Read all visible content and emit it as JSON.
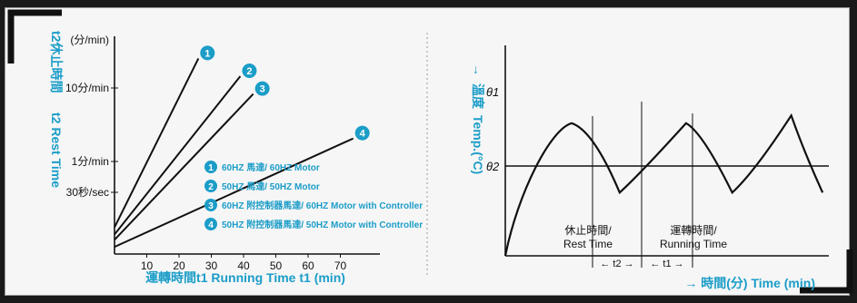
{
  "colors": {
    "accent": "#1b9dc8",
    "ink": "#111111",
    "panel": "#f6f6f6"
  },
  "left_chart": {
    "y_title_cn": "t2休止時間",
    "y_title_en": "t2 Rest Time",
    "y_unit": "(分/min)",
    "x_title": "運轉時間t1 Running Time t1 (min)",
    "legend": [
      {
        "num": "1",
        "label": "60HZ 馬達/ 60HZ Motor"
      },
      {
        "num": "2",
        "label": "50HZ 馬達/ 50HZ Motor"
      },
      {
        "num": "3",
        "label": "60HZ 附控制器馬達/ 60HZ Motor with Controller"
      },
      {
        "num": "4",
        "label": "50HZ 附控制器馬達/ 50HZ Motor with Controller"
      }
    ]
  },
  "right_chart": {
    "y_title_cn": "溫度",
    "y_title_en": "Temp.(°C)",
    "arrow_up": "→",
    "theta1": "θ1",
    "theta2": "θ2",
    "rest_label_cn": "休止時間/",
    "rest_label_en": "Rest Time",
    "run_label_cn": "運轉時間/",
    "run_label_en": "Running Time",
    "t2_marker": "← t2 →",
    "t1_marker": "← t1 →",
    "x_title": "→ 時間(分) Time (min)"
  },
  "chart_data": [
    {
      "type": "line",
      "x_ticks": [
        "10",
        "20",
        "30",
        "40",
        "50",
        "60",
        "70"
      ],
      "y_ticks": [
        "(分/min)",
        "10分/min",
        "1分/min",
        "30秒/sec"
      ],
      "xlim": [
        0,
        75
      ],
      "series": [
        {
          "name": "1",
          "x": [
            0,
            26
          ],
          "y": [
            3.0,
            22.0
          ]
        },
        {
          "name": "2",
          "x": [
            0,
            39
          ],
          "y": [
            2.2,
            20.0
          ]
        },
        {
          "name": "3",
          "x": [
            0,
            43
          ],
          "y": [
            1.6,
            18.0
          ]
        },
        {
          "name": "4",
          "x": [
            0,
            74
          ],
          "y": [
            0.8,
            13.0
          ]
        }
      ]
    },
    {
      "type": "line",
      "curve": [
        [
          0,
          0
        ],
        [
          8,
          36
        ],
        [
          16,
          58
        ],
        [
          25,
          76
        ],
        [
          36,
          86
        ],
        [
          62,
          41
        ],
        [
          98,
          86
        ],
        [
          123,
          41
        ],
        [
          155,
          91
        ],
        [
          172,
          41
        ]
      ],
      "theta1_level": 86,
      "theta2_level": 41
    }
  ]
}
